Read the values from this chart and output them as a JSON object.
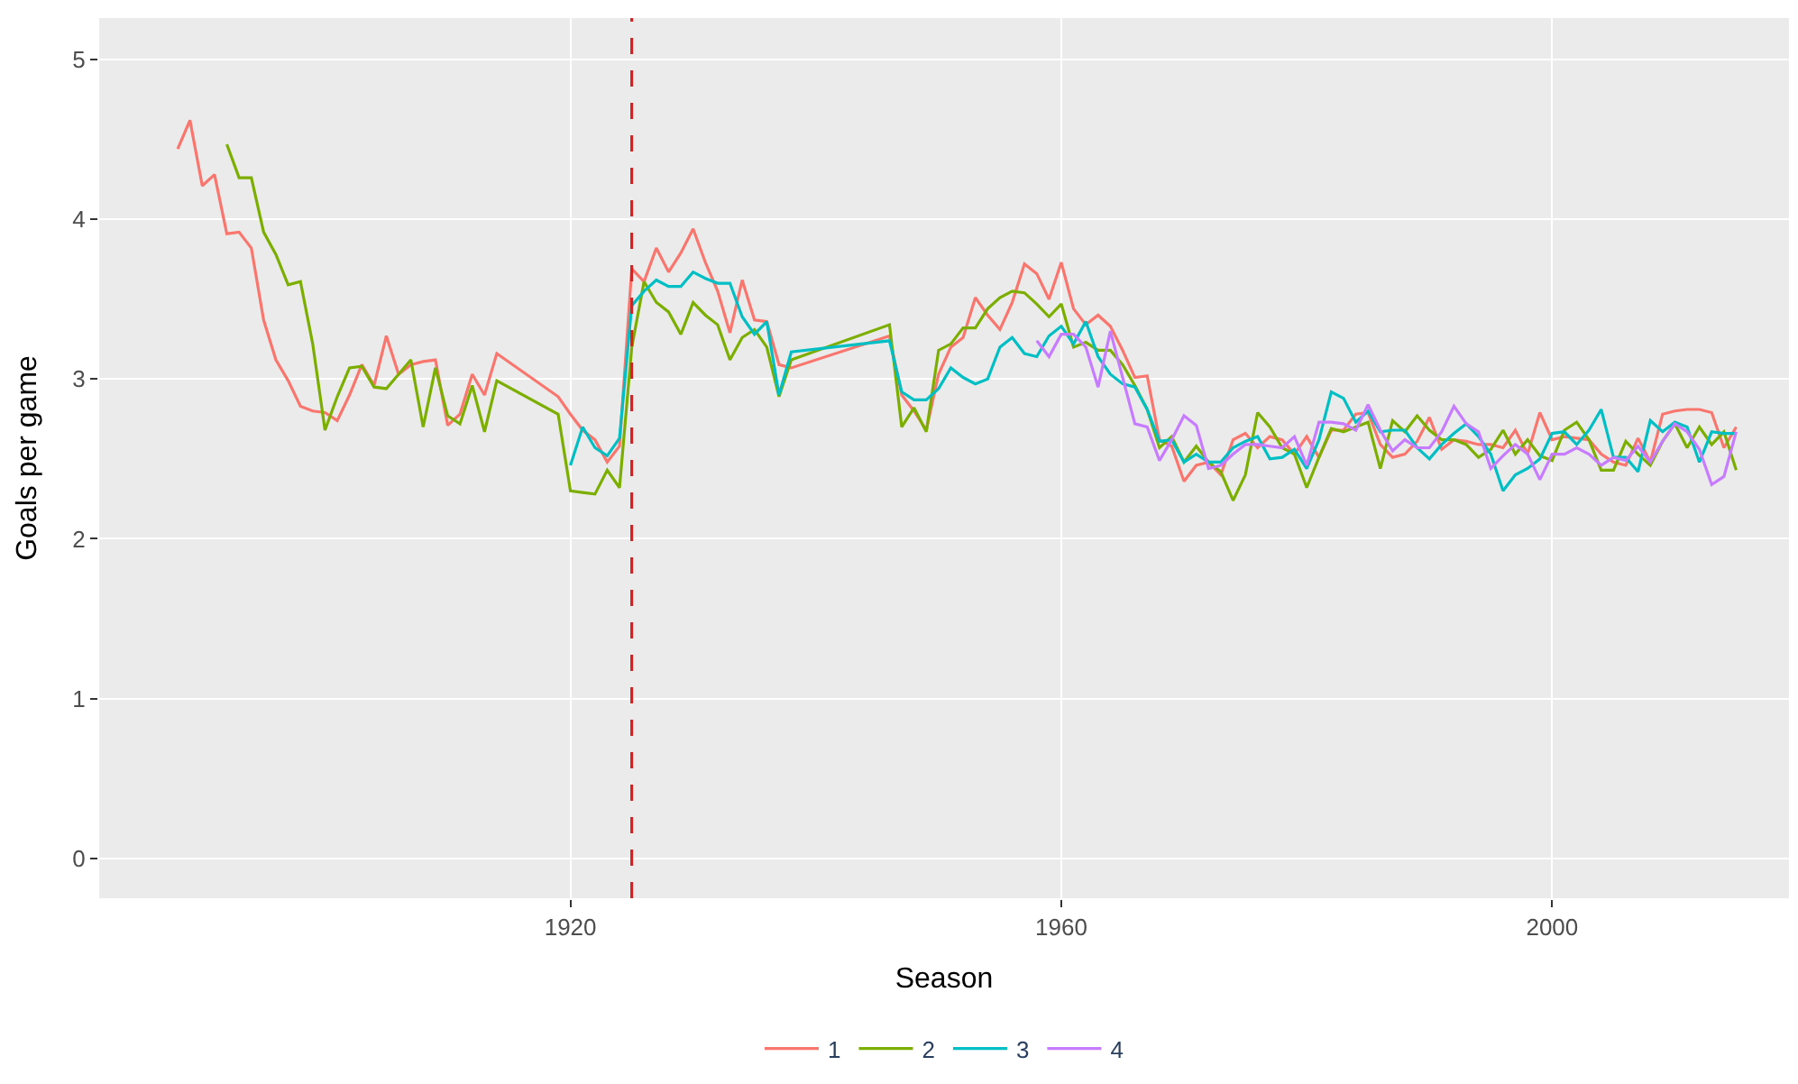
{
  "chart_data": {
    "type": "line",
    "xlabel": "Season",
    "ylabel": "Goals per game",
    "xlim": [
      1881.6,
      2019.3
    ],
    "xticks": [
      1920,
      1960,
      2000
    ],
    "ylim": [
      -0.25,
      5.26
    ],
    "yticks": [
      0,
      1,
      2,
      3,
      4,
      5
    ],
    "grid": true,
    "legend": "bottom",
    "line_style": "solid",
    "marker": "none",
    "ref_lines": [
      {
        "axis": "x",
        "value": 1925,
        "color": "#e41a1c",
        "line_style": "dashed"
      }
    ],
    "series": [
      {
        "name": "1",
        "color": "#f8766d",
        "x": [
          1888,
          1889,
          1890,
          1891,
          1892,
          1893,
          1894,
          1895,
          1896,
          1897,
          1898,
          1899,
          1900,
          1901,
          1902,
          1903,
          1904,
          1905,
          1906,
          1907,
          1908,
          1909,
          1910,
          1911,
          1912,
          1913,
          1914,
          1919,
          1920,
          1921,
          1922,
          1923,
          1924,
          1925,
          1926,
          1927,
          1928,
          1929,
          1930,
          1931,
          1932,
          1933,
          1934,
          1935,
          1936,
          1937,
          1938,
          1946,
          1947,
          1948,
          1949,
          1950,
          1951,
          1952,
          1953,
          1954,
          1955,
          1956,
          1957,
          1958,
          1959,
          1960,
          1961,
          1962,
          1963,
          1964,
          1965,
          1966,
          1967,
          1968,
          1969,
          1970,
          1971,
          1972,
          1973,
          1974,
          1975,
          1976,
          1977,
          1978,
          1979,
          1980,
          1981,
          1982,
          1983,
          1984,
          1985,
          1986,
          1987,
          1988,
          1989,
          1990,
          1991,
          1992,
          1993,
          1994,
          1995,
          1996,
          1997,
          1998,
          1999,
          2000,
          2001,
          2002,
          2003,
          2004,
          2005,
          2006,
          2007,
          2008,
          2009,
          2010,
          2011,
          2012,
          2013,
          2014,
          2015
        ],
        "values": [
          4.44,
          4.62,
          4.21,
          4.28,
          3.91,
          3.92,
          3.82,
          3.37,
          3.12,
          2.99,
          2.83,
          2.8,
          2.79,
          2.74,
          2.9,
          3.09,
          2.96,
          3.27,
          3.03,
          3.09,
          3.11,
          3.12,
          2.71,
          2.78,
          3.03,
          2.9,
          3.16,
          2.89,
          2.78,
          2.68,
          2.62,
          2.48,
          2.58,
          3.69,
          3.61,
          3.82,
          3.67,
          3.79,
          3.94,
          3.73,
          3.55,
          3.29,
          3.62,
          3.37,
          3.36,
          3.09,
          3.07,
          3.27,
          2.9,
          2.8,
          2.68,
          3.03,
          3.2,
          3.26,
          3.51,
          3.4,
          3.31,
          3.48,
          3.72,
          3.66,
          3.5,
          3.73,
          3.44,
          3.34,
          3.4,
          3.33,
          3.18,
          3.01,
          3.02,
          2.62,
          2.58,
          2.36,
          2.46,
          2.48,
          2.4,
          2.62,
          2.66,
          2.57,
          2.64,
          2.62,
          2.53,
          2.64,
          2.51,
          2.68,
          2.68,
          2.78,
          2.79,
          2.59,
          2.51,
          2.53,
          2.61,
          2.76,
          2.56,
          2.62,
          2.61,
          2.59,
          2.59,
          2.57,
          2.68,
          2.53,
          2.79,
          2.62,
          2.64,
          2.63,
          2.62,
          2.53,
          2.48,
          2.46,
          2.63,
          2.48,
          2.78,
          2.8,
          2.81,
          2.81,
          2.79,
          2.57,
          2.7
        ]
      },
      {
        "name": "2",
        "color": "#7cae00",
        "x": [
          1892,
          1893,
          1894,
          1895,
          1896,
          1897,
          1898,
          1899,
          1900,
          1901,
          1902,
          1903,
          1904,
          1905,
          1906,
          1907,
          1908,
          1909,
          1910,
          1911,
          1912,
          1913,
          1914,
          1919,
          1920,
          1921,
          1922,
          1923,
          1924,
          1925,
          1926,
          1927,
          1928,
          1929,
          1930,
          1931,
          1932,
          1933,
          1934,
          1935,
          1936,
          1937,
          1938,
          1946,
          1947,
          1948,
          1949,
          1950,
          1951,
          1952,
          1953,
          1954,
          1955,
          1956,
          1957,
          1958,
          1959,
          1960,
          1961,
          1962,
          1963,
          1964,
          1965,
          1966,
          1967,
          1968,
          1969,
          1970,
          1971,
          1972,
          1973,
          1974,
          1975,
          1976,
          1977,
          1978,
          1979,
          1980,
          1981,
          1982,
          1983,
          1984,
          1985,
          1986,
          1987,
          1988,
          1989,
          1990,
          1991,
          1992,
          1993,
          1994,
          1995,
          1996,
          1997,
          1998,
          1999,
          2000,
          2001,
          2002,
          2003,
          2004,
          2005,
          2006,
          2007,
          2008,
          2009,
          2010,
          2011,
          2012,
          2013,
          2014,
          2015
        ],
        "values": [
          4.47,
          4.26,
          4.26,
          3.92,
          3.78,
          3.59,
          3.61,
          3.22,
          2.68,
          2.89,
          3.07,
          3.08,
          2.95,
          2.94,
          3.03,
          3.12,
          2.7,
          3.07,
          2.77,
          2.72,
          2.96,
          2.67,
          2.99,
          2.78,
          2.3,
          2.29,
          2.28,
          2.43,
          2.32,
          3.2,
          3.61,
          3.48,
          3.42,
          3.28,
          3.48,
          3.4,
          3.34,
          3.12,
          3.26,
          3.31,
          3.2,
          2.89,
          3.12,
          3.34,
          2.7,
          2.82,
          2.67,
          3.18,
          3.22,
          3.32,
          3.32,
          3.44,
          3.51,
          3.55,
          3.54,
          3.47,
          3.39,
          3.47,
          3.2,
          3.23,
          3.18,
          3.18,
          3.09,
          2.96,
          2.81,
          2.57,
          2.64,
          2.48,
          2.58,
          2.48,
          2.42,
          2.24,
          2.4,
          2.79,
          2.7,
          2.57,
          2.53,
          2.32,
          2.51,
          2.69,
          2.67,
          2.7,
          2.73,
          2.44,
          2.74,
          2.67,
          2.77,
          2.68,
          2.62,
          2.62,
          2.59,
          2.51,
          2.56,
          2.68,
          2.53,
          2.62,
          2.52,
          2.49,
          2.68,
          2.73,
          2.62,
          2.43,
          2.43,
          2.61,
          2.53,
          2.46,
          2.61,
          2.72,
          2.57,
          2.7,
          2.59,
          2.67,
          2.43
        ]
      },
      {
        "name": "3",
        "color": "#00bfc4",
        "x": [
          1920,
          1921,
          1922,
          1923,
          1924,
          1925,
          1926,
          1927,
          1928,
          1929,
          1930,
          1931,
          1932,
          1933,
          1934,
          1935,
          1936,
          1937,
          1938,
          1946,
          1947,
          1948,
          1949,
          1950,
          1951,
          1952,
          1953,
          1954,
          1955,
          1956,
          1957,
          1958,
          1959,
          1960,
          1961,
          1962,
          1963,
          1964,
          1965,
          1966,
          1967,
          1968,
          1969,
          1970,
          1971,
          1972,
          1973,
          1974,
          1975,
          1976,
          1977,
          1978,
          1979,
          1980,
          1981,
          1982,
          1983,
          1984,
          1985,
          1986,
          1987,
          1988,
          1989,
          1990,
          1991,
          1992,
          1993,
          1994,
          1995,
          1996,
          1997,
          1998,
          1999,
          2000,
          2001,
          2002,
          2003,
          2004,
          2005,
          2006,
          2007,
          2008,
          2009,
          2010,
          2011,
          2012,
          2013,
          2014,
          2015
        ],
        "values": [
          2.46,
          2.7,
          2.57,
          2.52,
          2.63,
          3.46,
          3.55,
          3.62,
          3.58,
          3.58,
          3.67,
          3.63,
          3.6,
          3.6,
          3.39,
          3.28,
          3.36,
          2.9,
          3.17,
          3.24,
          2.92,
          2.87,
          2.87,
          2.94,
          3.07,
          3.01,
          2.97,
          3.0,
          3.2,
          3.26,
          3.16,
          3.14,
          3.27,
          3.33,
          3.22,
          3.36,
          3.14,
          3.03,
          2.97,
          2.95,
          2.81,
          2.61,
          2.62,
          2.48,
          2.53,
          2.48,
          2.48,
          2.57,
          2.61,
          2.64,
          2.5,
          2.51,
          2.56,
          2.44,
          2.62,
          2.92,
          2.88,
          2.73,
          2.8,
          2.67,
          2.68,
          2.68,
          2.57,
          2.5,
          2.59,
          2.66,
          2.72,
          2.64,
          2.53,
          2.3,
          2.4,
          2.44,
          2.5,
          2.66,
          2.67,
          2.59,
          2.68,
          2.81,
          2.51,
          2.51,
          2.42,
          2.74,
          2.67,
          2.73,
          2.7,
          2.48,
          2.67,
          2.66,
          2.66
        ]
      },
      {
        "name": "4",
        "color": "#c77cff",
        "x": [
          1958,
          1959,
          1960,
          1961,
          1962,
          1963,
          1964,
          1965,
          1966,
          1967,
          1968,
          1969,
          1970,
          1971,
          1972,
          1973,
          1974,
          1975,
          1976,
          1977,
          1978,
          1979,
          1980,
          1981,
          1982,
          1983,
          1984,
          1985,
          1986,
          1987,
          1988,
          1989,
          1990,
          1991,
          1992,
          1993,
          1994,
          1995,
          1996,
          1997,
          1998,
          1999,
          2000,
          2001,
          2002,
          2003,
          2004,
          2005,
          2006,
          2007,
          2008,
          2009,
          2010,
          2011,
          2012,
          2013,
          2014,
          2015
        ],
        "values": [
          3.24,
          3.14,
          3.28,
          3.28,
          3.2,
          2.95,
          3.3,
          3.01,
          2.72,
          2.7,
          2.49,
          2.62,
          2.77,
          2.71,
          2.44,
          2.46,
          2.53,
          2.59,
          2.59,
          2.58,
          2.57,
          2.64,
          2.46,
          2.73,
          2.73,
          2.72,
          2.68,
          2.84,
          2.68,
          2.55,
          2.62,
          2.57,
          2.57,
          2.67,
          2.83,
          2.72,
          2.67,
          2.44,
          2.52,
          2.59,
          2.53,
          2.37,
          2.53,
          2.53,
          2.57,
          2.53,
          2.46,
          2.51,
          2.49,
          2.58,
          2.48,
          2.61,
          2.72,
          2.67,
          2.56,
          2.34,
          2.39,
          2.67
        ]
      }
    ]
  }
}
